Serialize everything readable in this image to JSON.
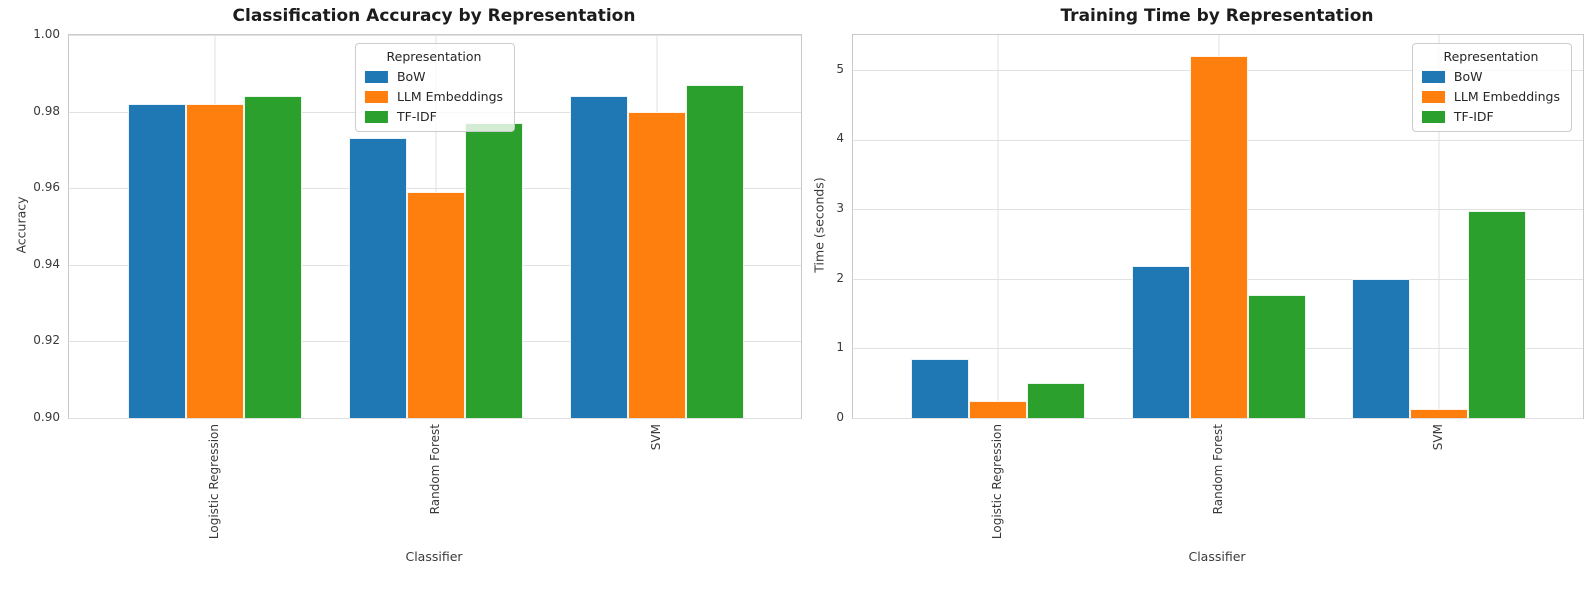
{
  "colors": {
    "background": "#ffffff",
    "grid": "#e1e1e1",
    "spine": "#c9c9c9",
    "title_text": "#1c1c1c",
    "tick_text": "#3a3a3a",
    "bow": "#1f77b4",
    "llm_embeddings": "#ff7f0e",
    "tfidf": "#2ca02c"
  },
  "chart_data": [
    {
      "type": "bar",
      "title": "Classification Accuracy by Representation",
      "xlabel": "Classifier",
      "ylabel": "Accuracy",
      "categories": [
        "Logistic Regression",
        "Random Forest",
        "SVM"
      ],
      "series": [
        {
          "name": "BoW",
          "color": "#1f77b4",
          "values": [
            0.982,
            0.973,
            0.984
          ]
        },
        {
          "name": "LLM Embeddings",
          "color": "#ff7f0e",
          "values": [
            0.982,
            0.959,
            0.98
          ]
        },
        {
          "name": "TF-IDF",
          "color": "#2ca02c",
          "values": [
            0.984,
            0.977,
            0.987
          ]
        }
      ],
      "ylim": [
        0.9,
        1.0
      ],
      "yticks": [
        "1.00",
        "0.98",
        "0.96",
        "0.94",
        "0.92",
        "0.90"
      ],
      "ytick_values": [
        1.0,
        0.98,
        0.96,
        0.94,
        0.92,
        0.9
      ],
      "grid": true,
      "legend_title": "Representation",
      "legend_position": "upper center"
    },
    {
      "type": "bar",
      "title": "Training Time by Representation",
      "xlabel": "Classifier",
      "ylabel": "Time (seconds)",
      "categories": [
        "Logistic Regression",
        "Random Forest",
        "SVM"
      ],
      "series": [
        {
          "name": "BoW",
          "color": "#1f77b4",
          "values": [
            0.85,
            2.18,
            2.0
          ]
        },
        {
          "name": "LLM Embeddings",
          "color": "#ff7f0e",
          "values": [
            0.25,
            5.2,
            0.13
          ]
        },
        {
          "name": "TF-IDF",
          "color": "#2ca02c",
          "values": [
            0.5,
            1.77,
            2.98
          ]
        }
      ],
      "ylim": [
        0,
        5.5
      ],
      "yticks": [
        "5",
        "4",
        "3",
        "2",
        "1",
        "0"
      ],
      "ytick_values": [
        5,
        4,
        3,
        2,
        1,
        0
      ],
      "grid": true,
      "legend_title": "Representation",
      "legend_position": "upper right"
    }
  ]
}
